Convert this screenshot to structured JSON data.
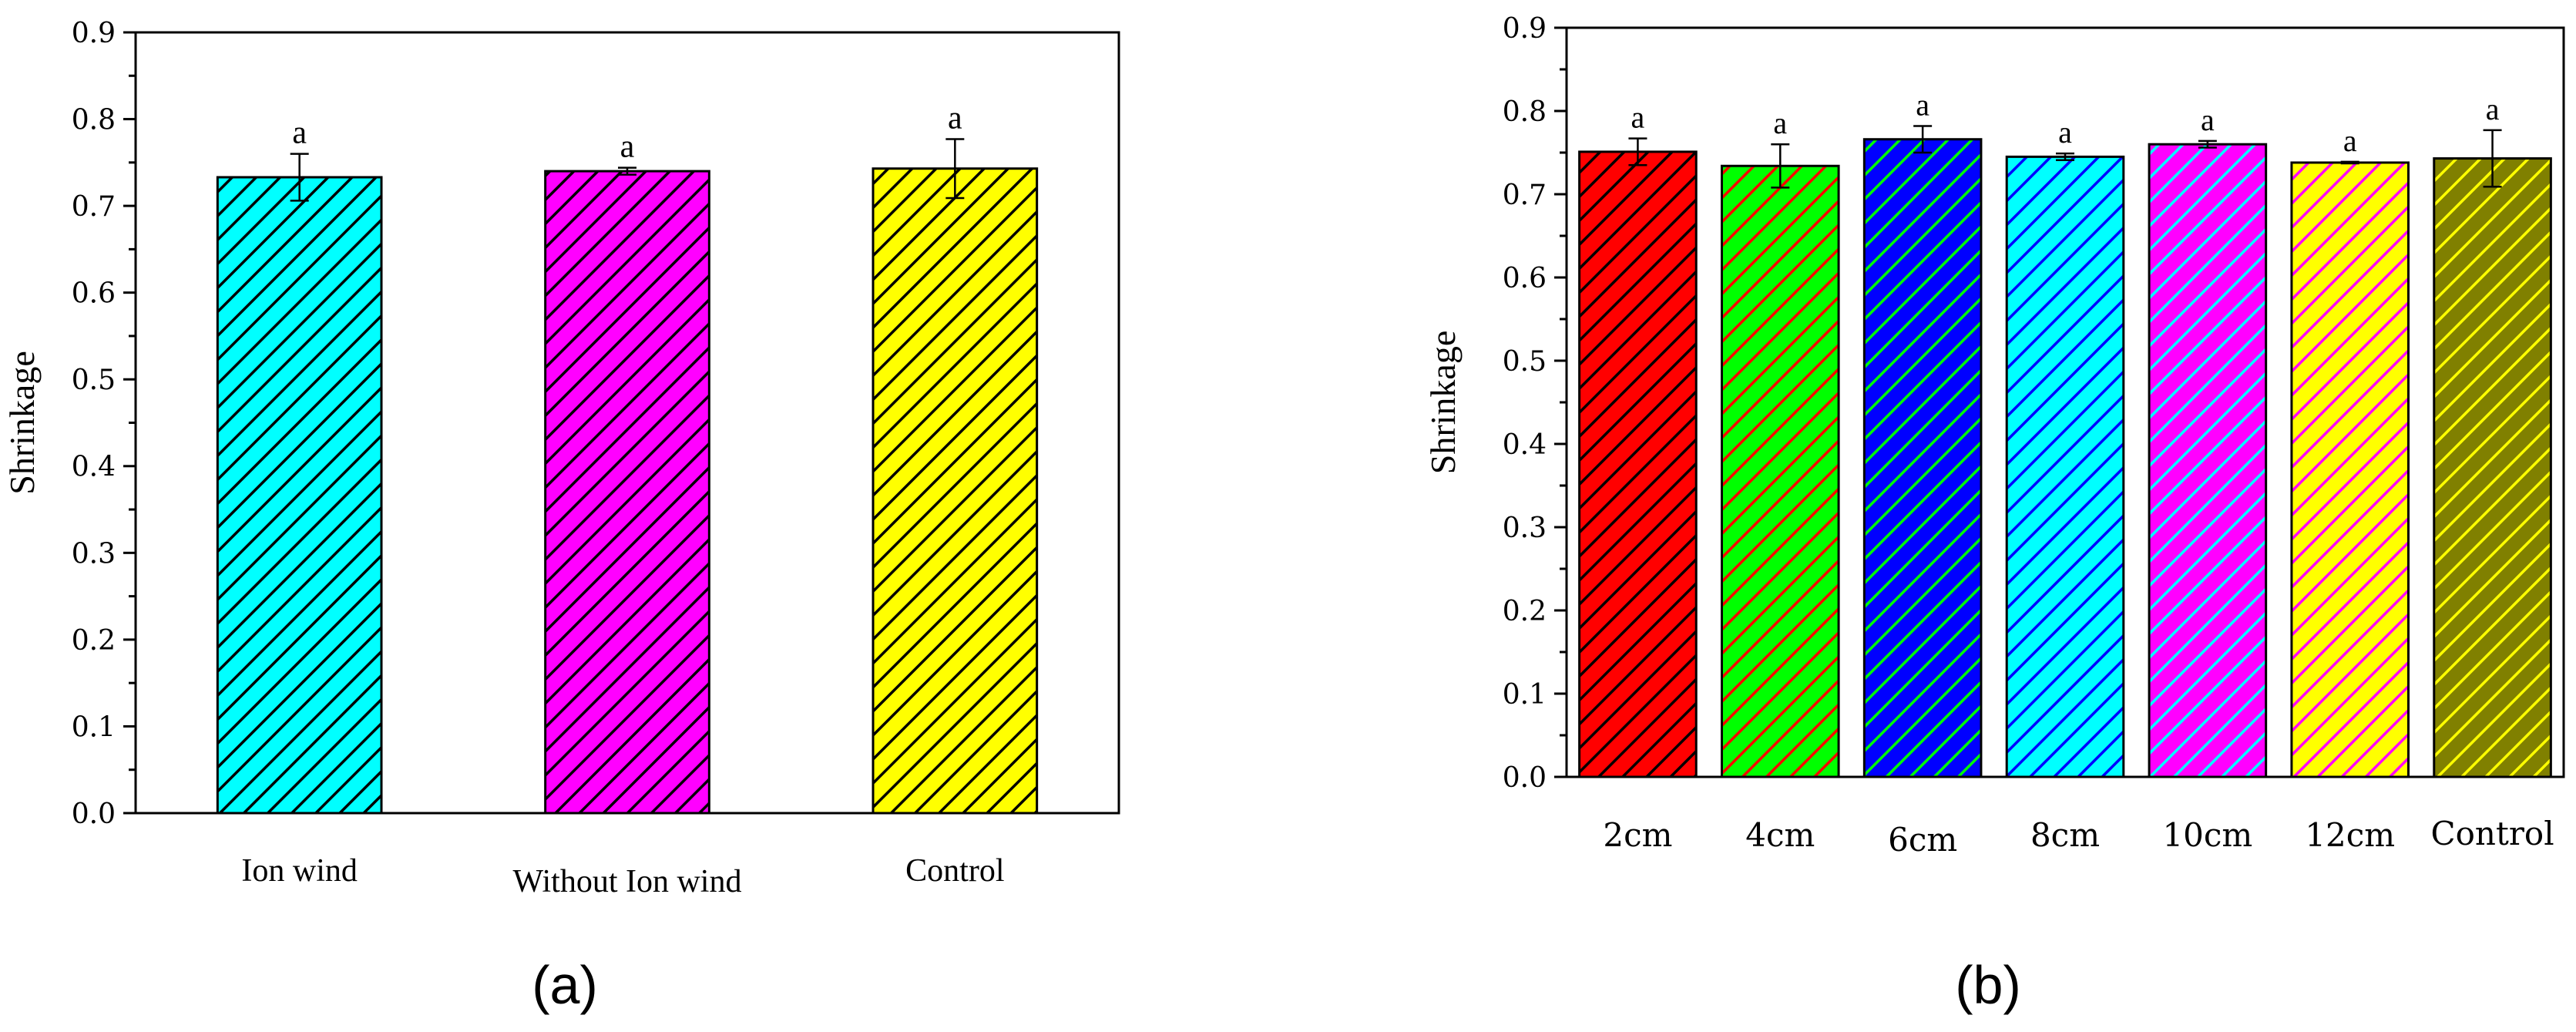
{
  "chart_data": [
    {
      "type": "bar",
      "panel_label": "(a)",
      "ylabel": "Shrinkage",
      "xlabel": "",
      "ylim": [
        0,
        0.9
      ],
      "yticks": [
        "0.0",
        "0.1",
        "0.2",
        "0.3",
        "0.4",
        "0.5",
        "0.6",
        "0.7",
        "0.8",
        "0.9"
      ],
      "categories": [
        "Ion wind",
        "Without Ion wind",
        "Control"
      ],
      "values": [
        0.733,
        0.74,
        0.743
      ],
      "errors": [
        0.027,
        0.004,
        0.034
      ],
      "significance": [
        "a",
        "a",
        "a"
      ],
      "bar_colors": [
        "#00ffff",
        "#ff00ff",
        "#ffff00"
      ],
      "hatch_colors": [
        "#000000",
        "#000000",
        "#000000"
      ],
      "grid": false,
      "legend": "none"
    },
    {
      "type": "bar",
      "panel_label": "(b)",
      "ylabel": "Shrinkage",
      "xlabel": "",
      "ylim": [
        0,
        0.9
      ],
      "yticks": [
        "0.0",
        "0.1",
        "0.2",
        "0.3",
        "0.4",
        "0.5",
        "0.6",
        "0.7",
        "0.8",
        "0.9"
      ],
      "categories": [
        "2cm",
        "4cm",
        "6cm",
        "8cm",
        "10cm",
        "12cm",
        "Control"
      ],
      "values": [
        0.751,
        0.734,
        0.766,
        0.745,
        0.76,
        0.738,
        0.743
      ],
      "errors": [
        0.016,
        0.026,
        0.016,
        0.004,
        0.004,
        0.001,
        0.034
      ],
      "significance": [
        "a",
        "a",
        "a",
        "a",
        "a",
        "a",
        "a"
      ],
      "bar_colors": [
        "#ff0000",
        "#00ff00",
        "#0000ff",
        "#00ffff",
        "#ff00ff",
        "#ffff00",
        "#808000"
      ],
      "hatch_colors": [
        "#000000",
        "#ff0000",
        "#00ff00",
        "#0000ff",
        "#00ffff",
        "#ff00ff",
        "#ffff00"
      ],
      "grid": false,
      "legend": "none"
    }
  ]
}
